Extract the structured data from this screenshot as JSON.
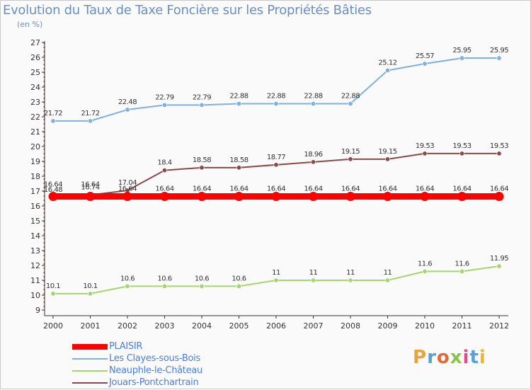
{
  "header": {
    "title": "Evolution du Taux de Taxe Foncière sur les Propriétés Bâties",
    "unit": "(en %)"
  },
  "logo": {
    "text": "Proxiti",
    "colors": [
      "#e8a33a",
      "#5aa0d8",
      "#e06a3a",
      "#8bc34a",
      "#e04c8a",
      "#5aa0d8",
      "#f0b429"
    ]
  },
  "chart_data": {
    "type": "line",
    "title": "Evolution du Taux de Taxe Foncière sur les Propriétés Bâties",
    "ylabel": "(en %)",
    "xlabel": "",
    "ylim": [
      9,
      27
    ],
    "yticks": [
      "9",
      "10",
      "11",
      "12",
      "13",
      "14",
      "15",
      "16",
      "17",
      "18",
      "19",
      "20",
      "21",
      "22",
      "23",
      "24",
      "25",
      "26",
      "27"
    ],
    "categories": [
      "2000",
      "2001",
      "2002",
      "2003",
      "2004",
      "2005",
      "2006",
      "2007",
      "2008",
      "2009",
      "2010",
      "2011",
      "2012"
    ],
    "series": [
      {
        "name": "PLAISIR",
        "color": "#ff0000",
        "values": [
          16.64,
          16.64,
          16.64,
          16.64,
          16.64,
          16.64,
          16.64,
          16.64,
          16.64,
          16.64,
          16.64,
          16.64,
          16.64
        ],
        "labels": [
          "16.64",
          "16.64",
          "16.64",
          "16.64",
          "16.64",
          "16.64",
          "16.64",
          "16.64",
          "16.64",
          "16.64",
          "16.64",
          "16.64",
          "16.64"
        ]
      },
      {
        "name": "Les Clayes-sous-Bois",
        "color": "#7fb0e0",
        "values": [
          21.72,
          21.72,
          22.48,
          22.79,
          22.79,
          22.88,
          22.88,
          22.88,
          22.88,
          25.12,
          25.57,
          25.95,
          25.95
        ],
        "labels": [
          "21.72",
          "21.72",
          "22.48",
          "22.79",
          "22.79",
          "22.88",
          "22.88",
          "22.88",
          "22.88",
          "25.12",
          "25.57",
          "25.95",
          "25.95"
        ]
      },
      {
        "name": "Neauphle-le-Château",
        "color": "#a4d66e",
        "values": [
          10.1,
          10.1,
          10.6,
          10.6,
          10.6,
          10.6,
          11,
          11,
          11,
          11,
          11.6,
          11.6,
          11.95
        ],
        "labels": [
          "10.1",
          "10.1",
          "10.6",
          "10.6",
          "10.6",
          "10.6",
          "11",
          "11",
          "11",
          "11",
          "11.6",
          "11.6",
          "11.95"
        ]
      },
      {
        "name": "Jouars-Pontchartrain",
        "color": "#8b4a4a",
        "values": [
          16.48,
          16.74,
          17.04,
          18.4,
          18.58,
          18.58,
          18.77,
          18.96,
          19.15,
          19.15,
          19.53,
          19.53,
          19.53
        ],
        "labels": [
          "16.48",
          "16.74",
          "17.04",
          "18.4",
          "18.58",
          "18.58",
          "18.77",
          "18.96",
          "19.15",
          "19.15",
          "19.53",
          "19.53",
          "19.53"
        ]
      }
    ],
    "legend": "bottom-left",
    "grid": false
  }
}
